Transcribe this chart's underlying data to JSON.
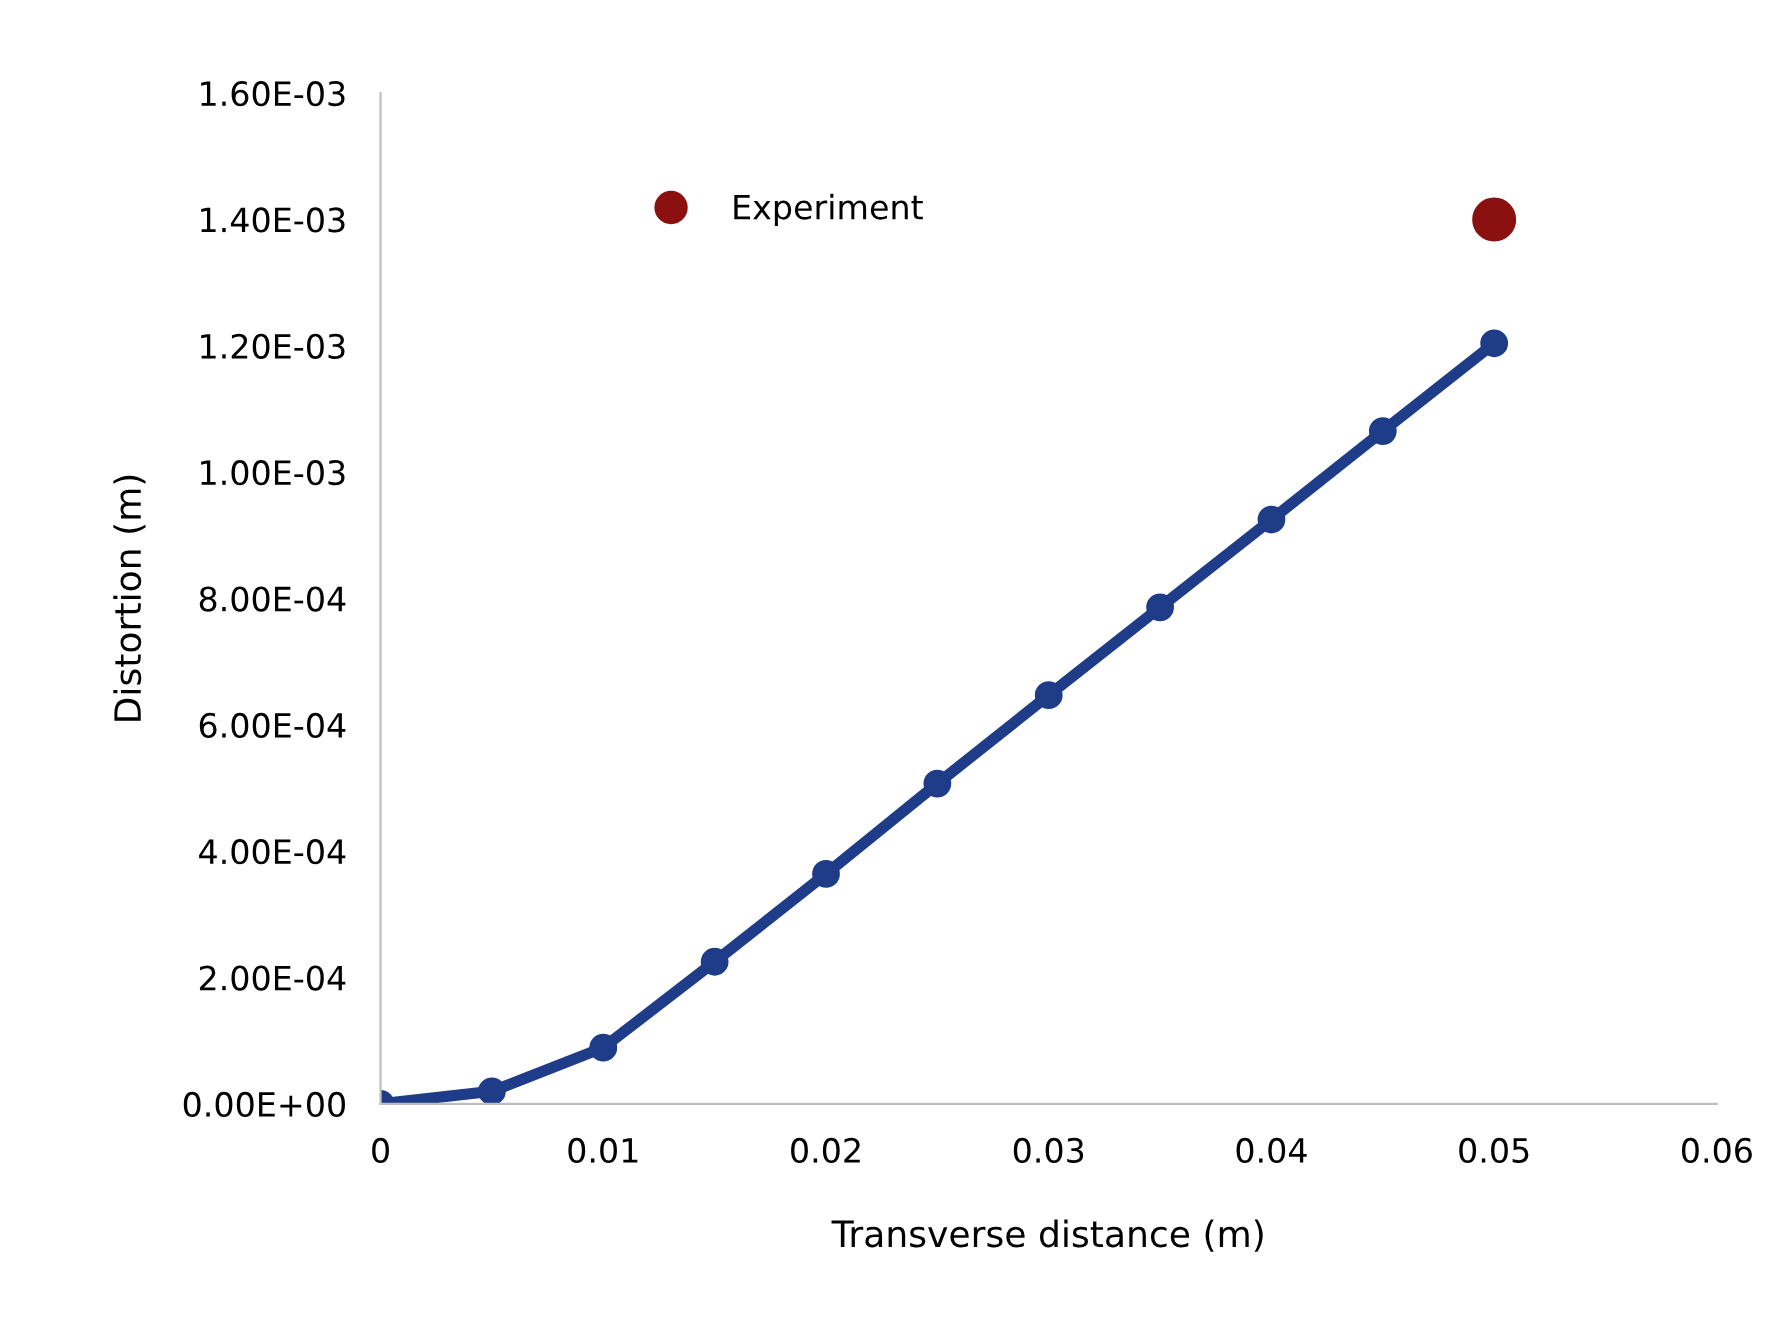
{
  "chart_data": {
    "type": "line",
    "xlabel": "Transverse distance (m)",
    "ylabel": "Distortion (m)",
    "xlim": [
      0,
      0.06
    ],
    "xticks": [
      0,
      0.01,
      0.02,
      0.03,
      0.04,
      0.05,
      0.06
    ],
    "ylim": [
      0,
      0.0016
    ],
    "yticks": [
      {
        "value": 0,
        "label": "0.00E+00"
      },
      {
        "value": 0.0002,
        "label": "2.00E-04"
      },
      {
        "value": 0.0004,
        "label": "4.00E-04"
      },
      {
        "value": 0.0006,
        "label": "6.00E-04"
      },
      {
        "value": 0.0008,
        "label": "8.00E-04"
      },
      {
        "value": 0.001,
        "label": "1.00E-03"
      },
      {
        "value": 0.0012,
        "label": "1.20E-03"
      },
      {
        "value": 0.0014,
        "label": "1.40E-03"
      },
      {
        "value": 0.0016,
        "label": "1.60E-03"
      }
    ],
    "grid": false,
    "legend": "top left",
    "marker": "circle",
    "series": [
      {
        "type": "line",
        "color": "#1f3c88",
        "x": [
          0,
          0.005,
          0.01,
          0.015,
          0.02,
          0.025,
          0.03,
          0.035,
          0.04,
          0.045,
          0.05
        ],
        "values": [
          0,
          2e-05,
          8.9e-05,
          0.000225,
          0.000364,
          0.000507,
          0.000647,
          0.000786,
          0.000925,
          0.001065,
          0.001204
        ]
      },
      {
        "type": "scatter",
        "name": "Experiment",
        "color": "#8b1010",
        "x": [
          0.05
        ],
        "values": [
          0.0014
        ]
      }
    ]
  }
}
